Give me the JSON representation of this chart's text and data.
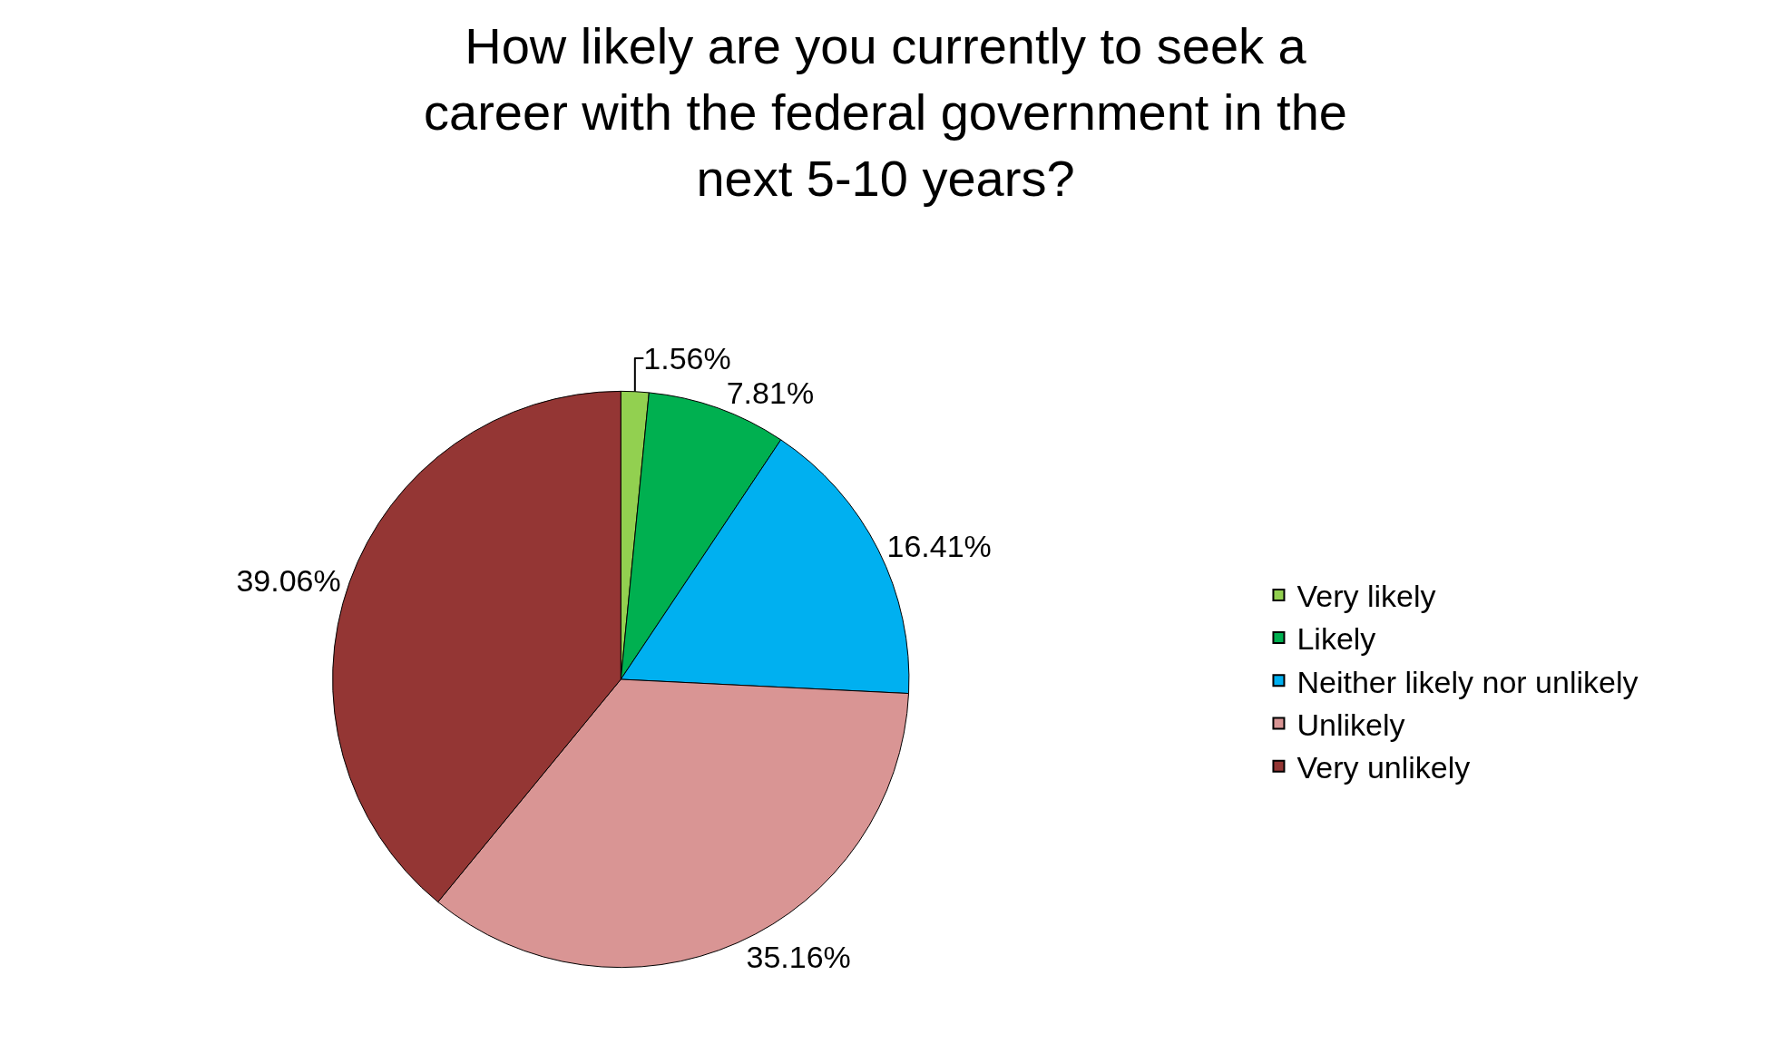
{
  "chart_data": {
    "type": "pie",
    "title": "How likely are you currently to seek a career with the federal government in the next 5-10 years?",
    "categories": [
      "Very likely",
      "Likely",
      "Neither likely nor unlikely",
      "Unlikely",
      "Very unlikely"
    ],
    "values": [
      1.56,
      7.81,
      16.41,
      35.16,
      39.06
    ],
    "value_labels": [
      "1.56%",
      "7.81%",
      "16.41%",
      "35.16%",
      "39.06%"
    ],
    "colors": [
      "#92d050",
      "#00b050",
      "#00b0f0",
      "#d99594",
      "#943634"
    ],
    "legend": "right"
  }
}
